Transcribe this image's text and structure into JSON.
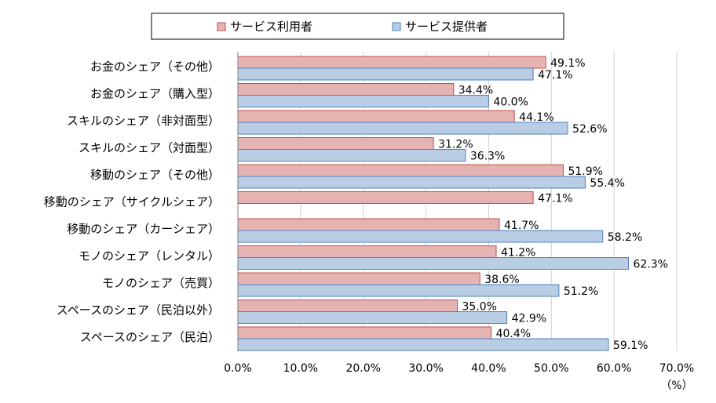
{
  "chart_data": {
    "type": "bar",
    "orientation": "horizontal",
    "unit_label": "（%）",
    "xlim": [
      0,
      70
    ],
    "xticks": [
      "0.0%",
      "10.0%",
      "20.0%",
      "30.0%",
      "40.0%",
      "50.0%",
      "60.0%",
      "70.0%"
    ],
    "grid": true,
    "legend_position": "top",
    "categories": [
      "お金のシェア（その他）",
      "お金のシェア（購入型）",
      "スキルのシェア（非対面型）",
      "スキルのシェア（対面型）",
      "移動のシェア（その他）",
      "移動のシェア（サイクルシェア）",
      "移動のシェア（カーシェア）",
      "モノのシェア（レンタル）",
      "モノのシェア（売買）",
      "スペースのシェア（民泊以外）",
      "スペースのシェア（民泊）"
    ],
    "series": [
      {
        "name": "サービス利用者",
        "color": "#e6b3b3",
        "stroke": "#c0504d",
        "values": [
          49.1,
          34.4,
          44.1,
          31.2,
          51.9,
          47.1,
          41.7,
          41.2,
          38.6,
          35.0,
          40.4
        ],
        "labels": [
          "49.1%",
          "34.4%",
          "44.1%",
          "31.2%",
          "51.9%",
          "47.1%",
          "41.7%",
          "41.2%",
          "38.6%",
          "35.0%",
          "40.4%"
        ]
      },
      {
        "name": "サービス提供者",
        "color": "#b9cde5",
        "stroke": "#4f81bd",
        "values": [
          47.1,
          40.0,
          52.6,
          36.3,
          55.4,
          null,
          58.2,
          62.3,
          51.2,
          42.9,
          59.1
        ],
        "labels": [
          "47.1%",
          "40.0%",
          "52.6%",
          "36.3%",
          "55.4%",
          null,
          "58.2%",
          "62.3%",
          "51.2%",
          "42.9%",
          "59.1%"
        ]
      }
    ]
  }
}
